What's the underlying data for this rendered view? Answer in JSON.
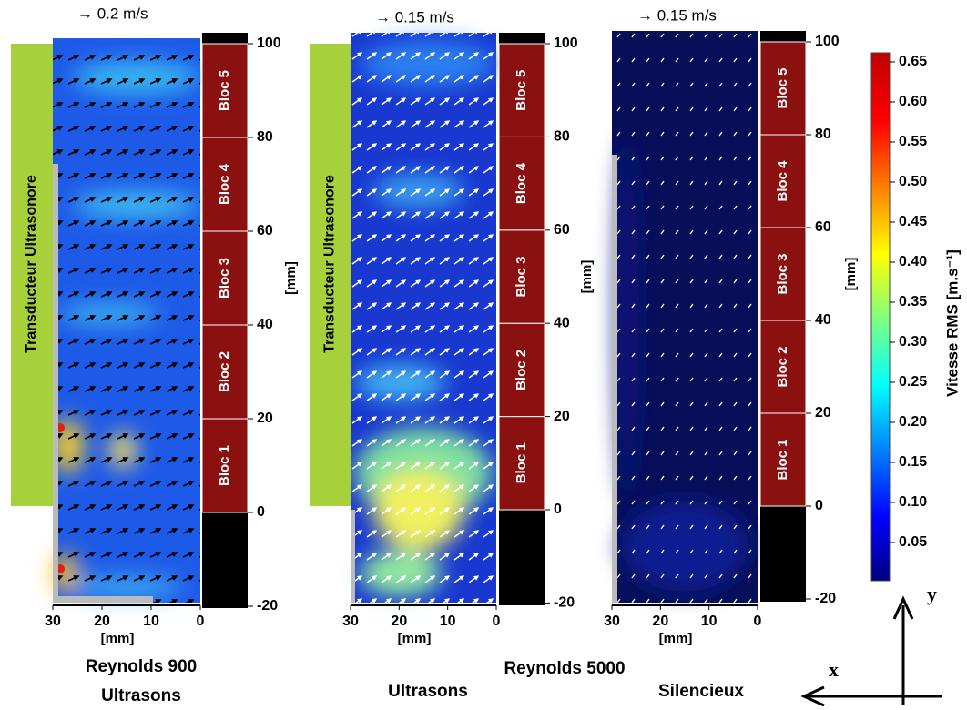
{
  "panels": [
    {
      "vector_scale": "→ 0.2 m/s",
      "yticks": [
        100,
        80,
        60,
        40,
        20,
        0,
        -20
      ],
      "y_unit": "[mm]",
      "xticks": [
        30,
        20,
        10,
        0
      ],
      "x_unit": "[mm]",
      "blocks": [
        "Bloc 1",
        "Bloc 2",
        "Bloc 3",
        "Bloc 4",
        "Bloc 5"
      ],
      "transducer": "Transducteur Ultrasonore"
    },
    {
      "vector_scale": "→ 0.15 m/s",
      "yticks": [
        100,
        80,
        60,
        40,
        20,
        0,
        -20
      ],
      "y_unit": "[mm]",
      "xticks": [
        30,
        20,
        10,
        0
      ],
      "x_unit": "[mm]",
      "blocks": [
        "Bloc 1",
        "Bloc 2",
        "Bloc 3",
        "Bloc 4",
        "Bloc 5"
      ],
      "transducer": "Transducteur Ultrasonore"
    },
    {
      "vector_scale": "→ 0.15 m/s",
      "yticks": [
        100,
        80,
        60,
        40,
        20,
        0,
        -20
      ],
      "y_unit": "[mm]",
      "xticks": [
        30,
        20,
        10,
        0
      ],
      "x_unit": "[mm]",
      "blocks": [
        "Bloc 1",
        "Bloc 2",
        "Bloc 3",
        "Bloc 4",
        "Bloc 5"
      ]
    }
  ],
  "colorbar": {
    "label": "Vitesse RMS [m.s⁻¹]",
    "ticks": [
      0.65,
      {
        "value": 0.6,
        "label": "0.60"
      },
      0.55,
      {
        "value": 0.5,
        "label": "0.50"
      },
      0.45,
      {
        "value": 0.4,
        "label": "0.40"
      },
      0.35,
      {
        "value": 0.3,
        "label": "0.30"
      },
      0.25,
      {
        "value": 0.2,
        "label": "0.20"
      },
      0.15,
      {
        "value": 0.1,
        "label": "0.10"
      },
      0.05
    ]
  },
  "captions": [
    "Reynolds 900",
    "Ultrasons",
    "Reynolds 5000",
    "Ultrasons",
    "Silencieux"
  ],
  "axes": {
    "x": "x",
    "y": "y"
  }
}
